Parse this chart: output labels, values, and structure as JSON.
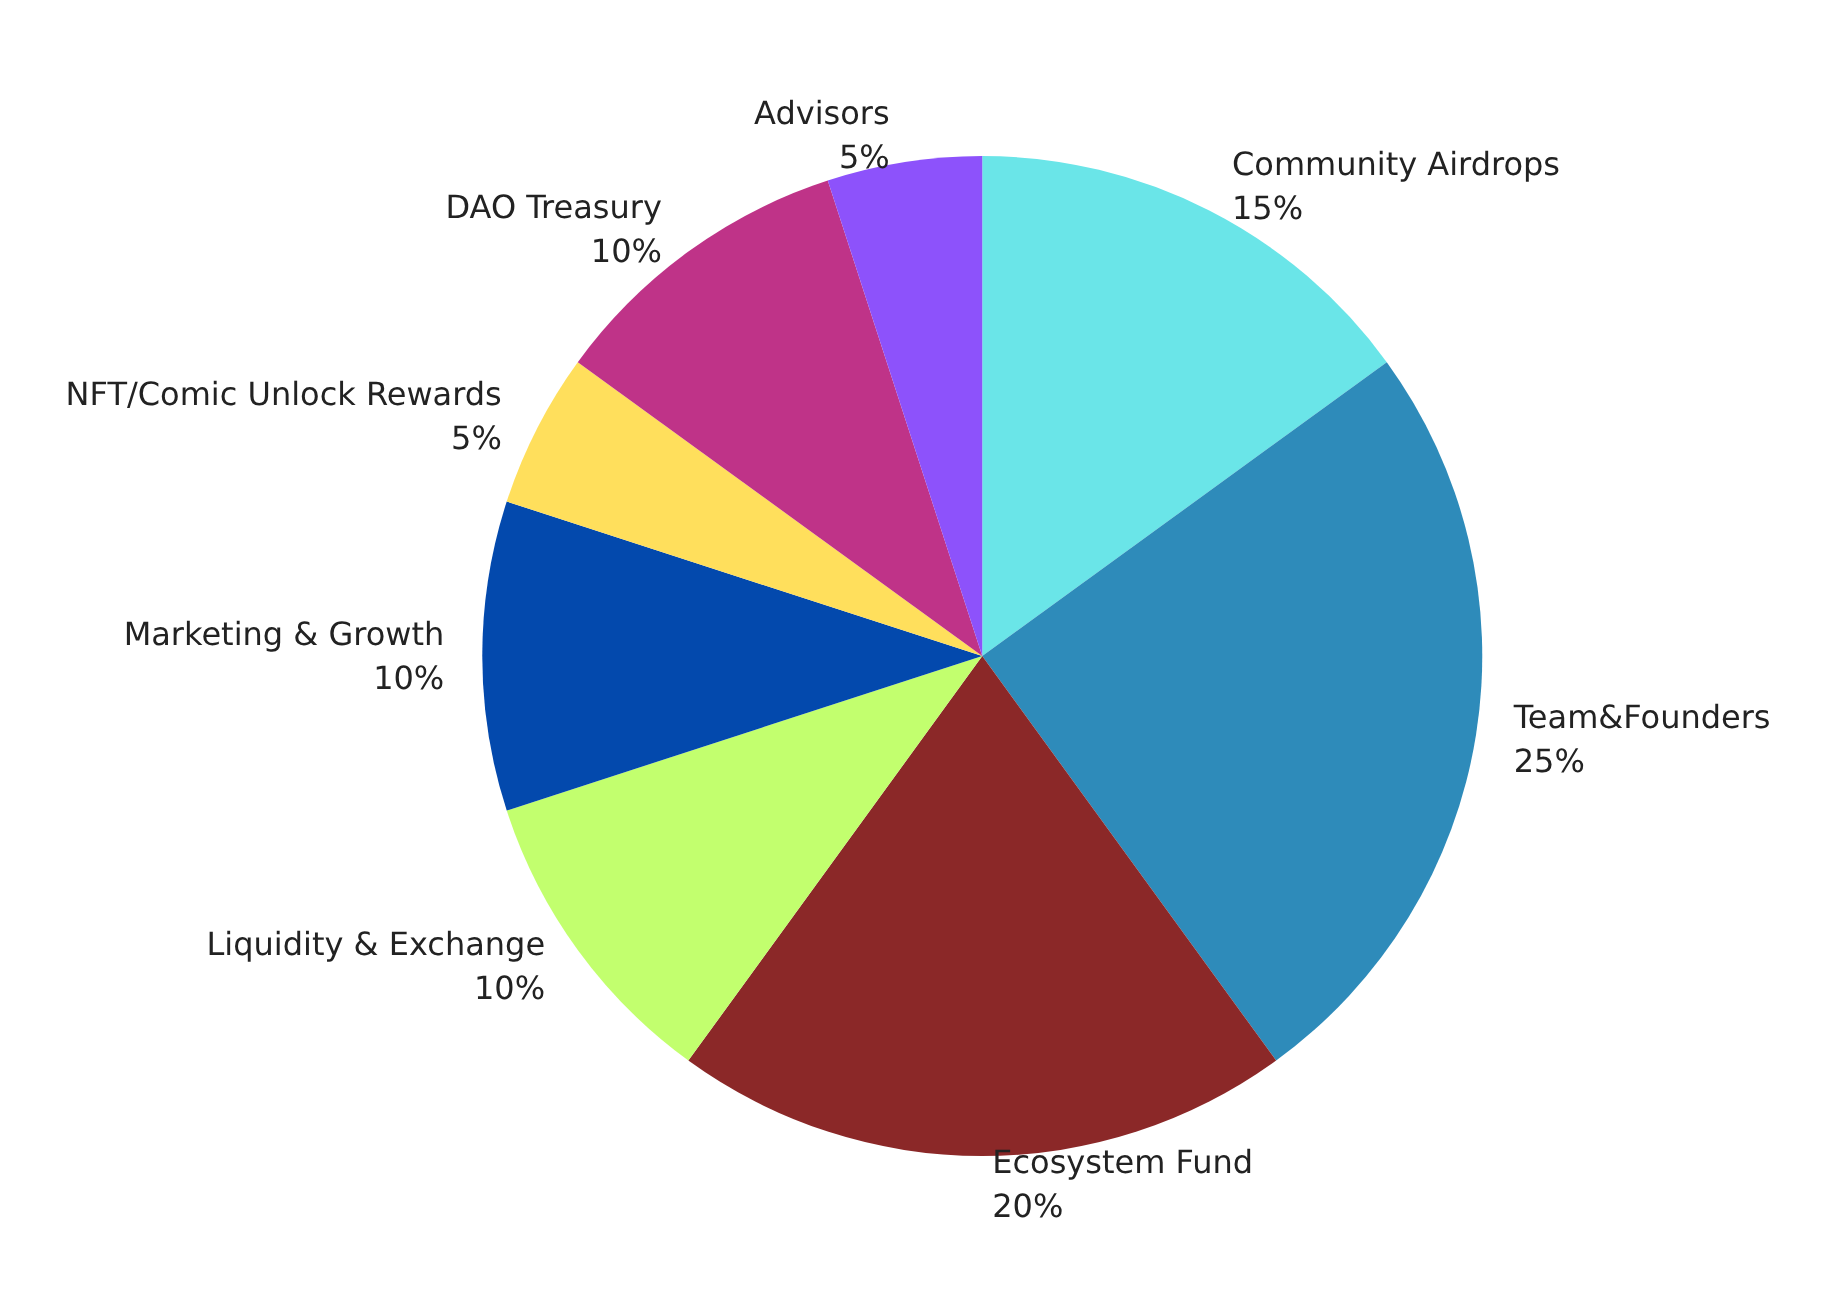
{
  "chart_data": {
    "type": "pie",
    "categories": [
      "Community Airdrops",
      "Team&Founders",
      "Ecosystem Fund",
      "Liquidity & Exchange",
      "Marketing & Growth",
      "NFT/Comic Unlock Rewards",
      "DAO Treasury",
      "Advisors"
    ],
    "values": [
      15,
      25,
      20,
      10,
      10,
      5,
      10,
      5
    ],
    "value_labels": [
      "15%",
      "25%",
      "20%",
      "10%",
      "10%",
      "5%",
      "10%",
      "5%"
    ],
    "colors": [
      "#6ae5e8",
      "#2e8bba",
      "#8b2828",
      "#c2ff6e",
      "#0349ad",
      "#ffdf5c",
      "#bf3388",
      "#8d52fb"
    ],
    "legend": false
  }
}
